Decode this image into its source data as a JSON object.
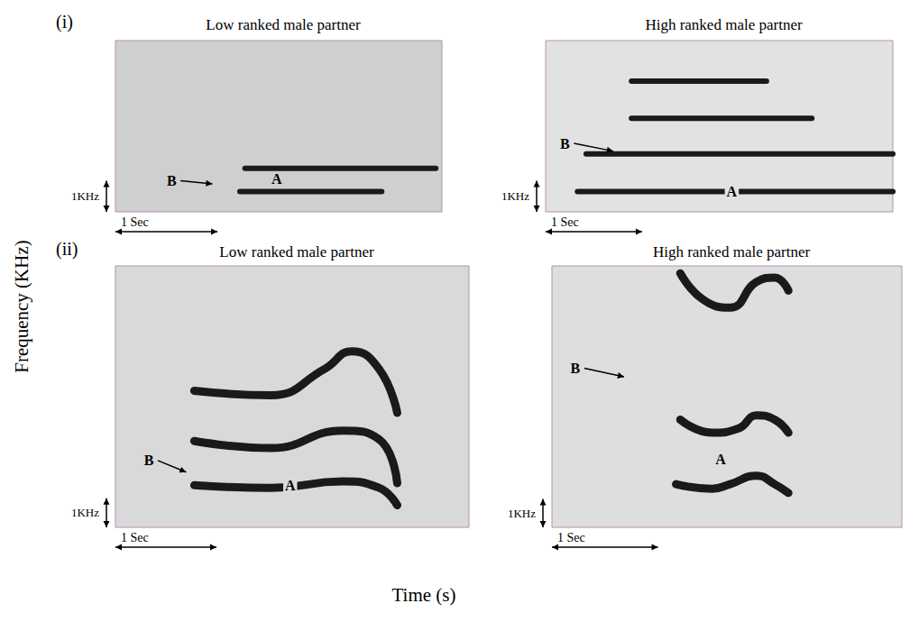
{
  "figure": {
    "row_labels": [
      "(i)",
      "(ii)"
    ],
    "y_label": "Frequency (KHz)",
    "x_label": "Time (s)"
  },
  "chart_data": [
    {
      "type": "line",
      "title": "Low ranked male partner",
      "xlim": [
        0,
        3.2
      ],
      "ylim": [
        0,
        5.5
      ],
      "tick_labels": false,
      "color": "#1a1a1a",
      "line_style": "solid",
      "scale_bars": {
        "x": {
          "value": 1,
          "label": "1 Sec"
        },
        "y": {
          "value": 1,
          "label": "1KHz"
        }
      },
      "series": [
        {
          "x": [
            1.27,
            3.14
          ],
          "values": [
            1.4,
            1.4
          ]
        },
        {
          "x": [
            1.22,
            2.61
          ],
          "values": [
            0.65,
            0.65
          ]
        }
      ],
      "annotations": [
        {
          "text": "A",
          "x": 1.58,
          "y": 1.05
        },
        {
          "text": "B",
          "x": 0.55,
          "y": 1.0,
          "arrow_to": [
            0.95,
            0.9
          ]
        }
      ]
    },
    {
      "type": "line",
      "title": "High ranked male partner",
      "xlim": [
        0,
        3.6
      ],
      "ylim": [
        0,
        5.5
      ],
      "tick_labels": false,
      "color": "#1a1a1a",
      "line_style": "solid",
      "scale_bars": {
        "x": {
          "value": 1,
          "label": "1 Sec"
        },
        "y": {
          "value": 1,
          "label": "1KHz"
        }
      },
      "series": [
        {
          "x": [
            0.33,
            3.6
          ],
          "values": [
            0.65,
            0.65
          ]
        },
        {
          "x": [
            0.42,
            3.6
          ],
          "values": [
            1.86,
            1.86
          ]
        },
        {
          "x": [
            0.89,
            2.76
          ],
          "values": [
            3.0,
            3.0
          ]
        },
        {
          "x": [
            0.89,
            2.29
          ],
          "values": [
            4.2,
            4.2
          ]
        }
      ],
      "annotations": [
        {
          "text": "A",
          "x": 1.93,
          "y": 0.65
        },
        {
          "text": "B",
          "x": 0.2,
          "y": 2.2,
          "arrow_to": [
            0.7,
            1.95
          ]
        }
      ]
    },
    {
      "type": "line",
      "title": "Low ranked male partner",
      "xlim": [
        0,
        3.5
      ],
      "ylim": [
        0,
        9
      ],
      "tick_labels": false,
      "color": "#1a1a1a",
      "line_style": "solid",
      "scale_bars": {
        "x": {
          "value": 1,
          "label": "1 Sec"
        },
        "y": {
          "value": 1,
          "label": "1KHz"
        }
      },
      "series": [
        {
          "x": [
            0.78,
            1.54,
            2.25,
            2.61,
            2.79
          ],
          "values": [
            1.45,
            1.36,
            1.58,
            1.36,
            0.76
          ]
        },
        {
          "x": [
            0.78,
            1.54,
            2.25,
            2.61,
            2.79
          ],
          "values": [
            2.97,
            2.73,
            3.33,
            3.03,
            1.52
          ]
        },
        {
          "x": [
            0.78,
            1.54,
            2.07,
            2.34,
            2.61,
            2.79
          ],
          "values": [
            4.7,
            4.55,
            5.45,
            6.06,
            5.45,
            3.94
          ]
        }
      ],
      "annotations": [
        {
          "text": "A",
          "x": 1.73,
          "y": 1.45
        },
        {
          "text": "B",
          "x": 0.33,
          "y": 2.3,
          "arrow_to": [
            0.7,
            1.9
          ]
        }
      ]
    },
    {
      "type": "line",
      "title": "High ranked male partner",
      "xlim": [
        0,
        3.3
      ],
      "ylim": [
        0,
        9.2
      ],
      "tick_labels": false,
      "color": "#1a1a1a",
      "line_style": "solid",
      "scale_bars": {
        "x": {
          "value": 1,
          "label": "1 Sec"
        },
        "y": {
          "value": 1,
          "label": "1KHz"
        }
      },
      "series": [
        {
          "x": [
            1.17,
            1.51,
            1.68,
            1.93,
            2.1,
            2.23
          ],
          "values": [
            1.52,
            1.36,
            1.52,
            1.82,
            1.52,
            1.21
          ]
        },
        {
          "x": [
            1.21,
            1.51,
            1.76,
            1.93,
            2.1,
            2.23
          ],
          "values": [
            3.79,
            3.33,
            3.48,
            3.94,
            3.79,
            3.33
          ]
        },
        {
          "x": [
            1.21,
            1.42,
            1.68,
            1.93,
            2.1,
            2.23
          ],
          "values": [
            8.94,
            8.03,
            7.73,
            8.64,
            8.79,
            8.33
          ]
        }
      ],
      "annotations": [
        {
          "text": "A",
          "x": 1.59,
          "y": 2.4
        },
        {
          "text": "B",
          "x": 0.22,
          "y": 5.6,
          "arrow_to": [
            0.68,
            5.3
          ]
        }
      ]
    }
  ]
}
